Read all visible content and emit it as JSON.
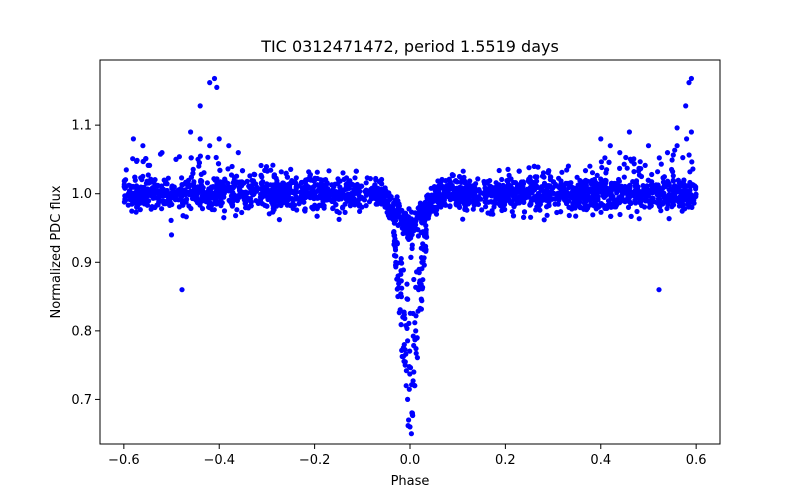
{
  "chart_data": {
    "type": "scatter",
    "title": "TIC 0312471472, period 1.5519 days",
    "xlabel": "Phase",
    "ylabel": "Normalized PDC flux",
    "xlim": [
      -0.65,
      0.65
    ],
    "ylim": [
      0.635,
      1.195
    ],
    "grid": false,
    "marker_color": "#0000ff",
    "xticks": [
      -0.6,
      -0.4,
      -0.2,
      0.0,
      0.2,
      0.4,
      0.6
    ],
    "xtick_labels": [
      "−0.6",
      "−0.4",
      "−0.2",
      "0.0",
      "0.2",
      "0.4",
      "0.6"
    ],
    "yticks": [
      0.7,
      0.8,
      0.9,
      1.0,
      1.1
    ],
    "ytick_labels": [
      "0.7",
      "0.8",
      "0.9",
      "1.0",
      "1.1"
    ],
    "series": [
      {
        "name": "PDC flux",
        "x": [
          -0.42,
          -0.41,
          -0.405,
          -0.44,
          -0.478,
          0.578,
          0.59,
          0.585,
          0.56,
          0.522,
          -0.58,
          -0.56,
          -0.52,
          -0.5,
          -0.46,
          -0.44,
          -0.42,
          -0.4,
          -0.38,
          -0.36,
          0.4,
          0.42,
          0.44,
          0.46,
          0.5,
          0.54,
          0.56,
          0.58,
          0.59,
          -0.02,
          -0.015,
          -0.01,
          -0.005,
          0.0,
          0.005,
          0.01,
          0.015,
          0.02,
          -0.012,
          -0.008,
          0.008,
          0.012,
          0.003,
          -0.003,
          -0.03,
          -0.025,
          0.025,
          0.03,
          -0.018,
          0.018
        ],
        "y": [
          1.162,
          1.168,
          1.155,
          1.128,
          0.86,
          1.128,
          1.168,
          1.162,
          1.096,
          0.86,
          1.08,
          1.07,
          1.06,
          0.94,
          1.09,
          1.08,
          1.07,
          1.08,
          1.07,
          1.06,
          1.08,
          1.07,
          1.06,
          1.09,
          1.07,
          1.06,
          1.07,
          1.08,
          1.09,
          0.9,
          0.82,
          0.75,
          0.7,
          0.66,
          0.68,
          0.72,
          0.79,
          0.87,
          0.78,
          0.72,
          0.74,
          0.8,
          0.65,
          0.67,
          0.93,
          0.88,
          0.9,
          0.94,
          0.85,
          0.86
        ]
      }
    ]
  }
}
